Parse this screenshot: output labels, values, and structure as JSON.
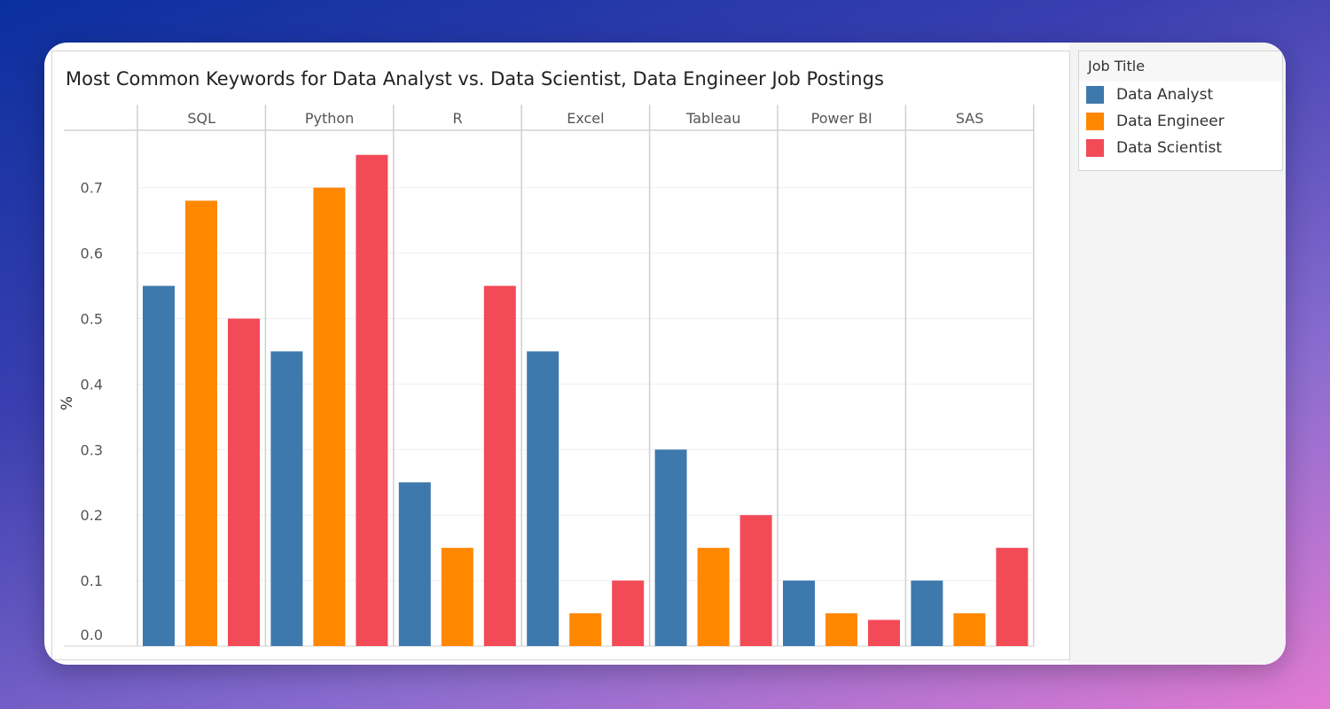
{
  "chart_data": {
    "type": "bar",
    "title": "Most Common Keywords for Data Analyst vs. Data Scientist, Data Engineer Job Postings",
    "ylabel": "%",
    "xlabel": "",
    "categories": [
      "SQL",
      "Python",
      "R",
      "Excel",
      "Tableau",
      "Power BI",
      "SAS"
    ],
    "yticks": [
      "0.0",
      "0.1",
      "0.2",
      "0.3",
      "0.4",
      "0.5",
      "0.6",
      "0.7"
    ],
    "ylim": [
      0,
      0.79
    ],
    "grid": true,
    "legend_placement": "right",
    "legend_title": "Job Title",
    "series": [
      {
        "name": "Data Analyst",
        "color": "#3e79ad",
        "values": [
          0.55,
          0.45,
          0.25,
          0.45,
          0.3,
          0.1,
          0.1
        ]
      },
      {
        "name": "Data Engineer",
        "color": "#ff8800",
        "values": [
          0.68,
          0.7,
          0.15,
          0.05,
          0.15,
          0.05,
          0.05
        ]
      },
      {
        "name": "Data Scientist",
        "color": "#f24b57",
        "values": [
          0.5,
          0.75,
          0.55,
          0.1,
          0.2,
          0.04,
          0.15
        ]
      }
    ]
  }
}
